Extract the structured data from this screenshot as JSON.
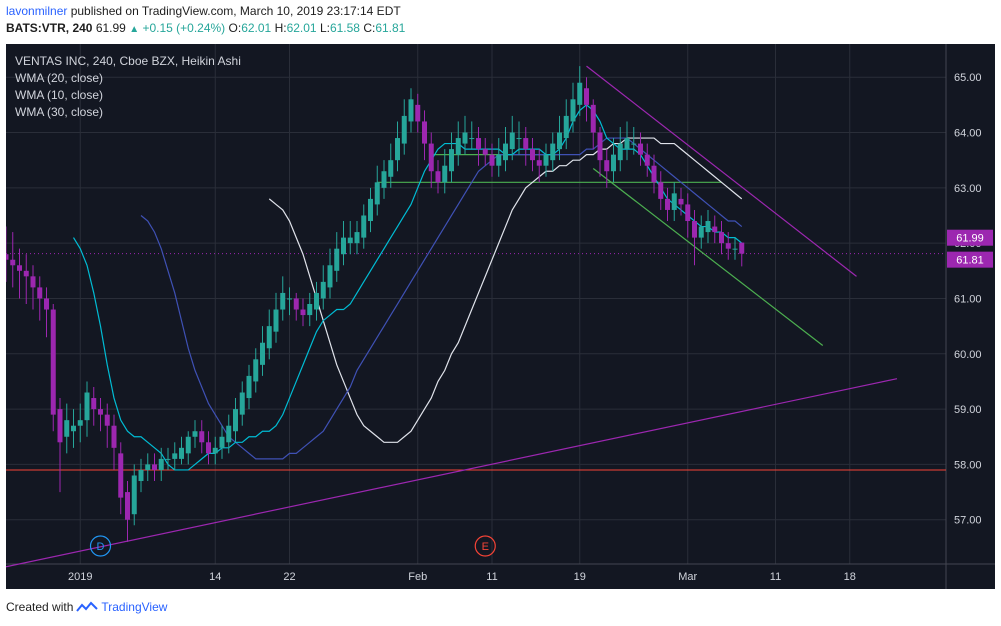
{
  "header": {
    "user": "lavonmilner",
    "published": "published on TradingView.com, March 10, 2019 23:17:14 EDT",
    "symbol": "BATS:VTR, 240",
    "last": "61.99",
    "change": "+0.15 (+0.24%)",
    "o_label": "O:",
    "o": "62.01",
    "h_label": "H:",
    "h": "62.01",
    "l_label": "L:",
    "l": "61.58",
    "c_label": "C:",
    "c": "61.81"
  },
  "legend": {
    "title": "VENTAS INC, 240, Cboe BZX, Heikin Ashi",
    "wma1": "WMA (20, close)",
    "wma2": "WMA (10, close)",
    "wma3": "WMA (30, close)"
  },
  "footer": {
    "created": "Created with",
    "brand": "TradingView"
  },
  "colors": {
    "background": "#131722",
    "grid": "#2a2e39",
    "up": "#26a69a",
    "down": "#9c27b0",
    "wma10": "#00bcd4",
    "wma20": "#3f51b5",
    "wma30": "#e0e3eb",
    "trend_purple": "#9c27b0",
    "trend_green": "#4caf50",
    "support_red": "#f44336"
  },
  "chart_data": {
    "type": "candlestick",
    "title": "VENTAS INC, 240, Cboe BZX, Heikin Ashi",
    "y_ticks": [
      "65.00",
      "64.00",
      "63.00",
      "62.00",
      "61.00",
      "60.00",
      "59.00",
      "58.00",
      "57.00"
    ],
    "ylim": [
      56.2,
      65.6
    ],
    "x_labels": [
      "2019",
      "14",
      "22",
      "Feb",
      "11",
      "19",
      "Mar",
      "11",
      "18"
    ],
    "x_label_index": [
      11,
      31,
      42,
      61,
      72,
      85,
      101,
      114,
      125
    ],
    "price_marks": [
      {
        "value": 61.99,
        "label": "61.99",
        "color": "#9c27b0"
      },
      {
        "value": 61.81,
        "label": "61.81",
        "color": "#9c27b0"
      }
    ],
    "events": [
      {
        "label": "D",
        "index": 14,
        "color": "#2196f3"
      },
      {
        "label": "E",
        "index": 71,
        "color": "#f44336"
      }
    ],
    "candles": [
      [
        61.8,
        61.7,
        62.3,
        61.3
      ],
      [
        61.7,
        61.6,
        62.2,
        61.2
      ],
      [
        61.6,
        61.5,
        61.9,
        61.0
      ],
      [
        61.5,
        61.4,
        61.8,
        60.9
      ],
      [
        61.4,
        61.2,
        61.6,
        60.8
      ],
      [
        61.2,
        61.0,
        61.4,
        60.6
      ],
      [
        61.0,
        60.8,
        61.2,
        60.3
      ],
      [
        60.8,
        58.9,
        60.9,
        58.6
      ],
      [
        59.0,
        58.4,
        59.2,
        57.5
      ],
      [
        58.5,
        58.8,
        59.1,
        58.2
      ],
      [
        58.6,
        58.7,
        59.0,
        58.3
      ],
      [
        58.7,
        58.8,
        59.1,
        58.4
      ],
      [
        58.8,
        59.3,
        59.5,
        58.5
      ],
      [
        59.2,
        59.0,
        59.4,
        58.7
      ],
      [
        59.0,
        58.9,
        59.2,
        58.6
      ],
      [
        58.9,
        58.7,
        59.1,
        58.3
      ],
      [
        58.7,
        58.3,
        58.9,
        57.9
      ],
      [
        58.2,
        57.4,
        58.4,
        57.1
      ],
      [
        57.5,
        57.0,
        57.7,
        56.6
      ],
      [
        57.1,
        57.8,
        58.0,
        56.9
      ],
      [
        57.7,
        57.9,
        58.1,
        57.5
      ],
      [
        57.9,
        58.0,
        58.2,
        57.7
      ],
      [
        58.0,
        57.9,
        58.2,
        57.7
      ],
      [
        57.9,
        58.1,
        58.3,
        57.7
      ],
      [
        58.1,
        58.1,
        58.3,
        57.9
      ],
      [
        58.1,
        58.2,
        58.4,
        57.9
      ],
      [
        58.1,
        58.3,
        58.5,
        58.0
      ],
      [
        58.2,
        58.5,
        58.6,
        58.0
      ],
      [
        58.5,
        58.6,
        58.8,
        58.3
      ],
      [
        58.6,
        58.4,
        58.8,
        58.2
      ],
      [
        58.4,
        58.2,
        58.6,
        58.0
      ],
      [
        58.2,
        58.3,
        58.5,
        58.0
      ],
      [
        58.3,
        58.5,
        58.7,
        58.1
      ],
      [
        58.4,
        58.7,
        58.9,
        58.2
      ],
      [
        58.6,
        59.0,
        59.2,
        58.4
      ],
      [
        58.9,
        59.3,
        59.5,
        58.7
      ],
      [
        59.2,
        59.6,
        59.8,
        59.0
      ],
      [
        59.5,
        59.9,
        60.1,
        59.3
      ],
      [
        59.8,
        60.2,
        60.5,
        59.6
      ],
      [
        60.1,
        60.5,
        60.8,
        59.9
      ],
      [
        60.4,
        60.8,
        61.1,
        60.2
      ],
      [
        60.8,
        61.1,
        61.4,
        60.6
      ],
      [
        61.0,
        61.0,
        61.2,
        60.7
      ],
      [
        61.0,
        60.8,
        61.1,
        60.6
      ],
      [
        60.8,
        60.7,
        61.0,
        60.5
      ],
      [
        60.7,
        60.9,
        61.1,
        60.5
      ],
      [
        60.8,
        61.1,
        61.3,
        60.6
      ],
      [
        61.0,
        61.3,
        61.6,
        60.8
      ],
      [
        61.2,
        61.6,
        61.9,
        61.0
      ],
      [
        61.5,
        61.9,
        62.2,
        61.3
      ],
      [
        61.8,
        62.1,
        62.4,
        61.6
      ],
      [
        62.0,
        62.1,
        62.4,
        61.8
      ],
      [
        62.0,
        62.2,
        62.4,
        61.8
      ],
      [
        62.1,
        62.5,
        62.7,
        61.9
      ],
      [
        62.4,
        62.8,
        63.0,
        62.2
      ],
      [
        62.7,
        63.1,
        63.4,
        62.5
      ],
      [
        63.0,
        63.3,
        63.5,
        62.8
      ],
      [
        63.2,
        63.5,
        63.8,
        63.0
      ],
      [
        63.5,
        63.9,
        64.2,
        63.3
      ],
      [
        63.8,
        64.3,
        64.6,
        63.6
      ],
      [
        64.2,
        64.6,
        64.8,
        64.0
      ],
      [
        64.5,
        64.2,
        64.7,
        64.0
      ],
      [
        64.2,
        63.8,
        64.4,
        63.5
      ],
      [
        63.8,
        63.3,
        64.0,
        63.0
      ],
      [
        63.3,
        63.1,
        63.5,
        62.9
      ],
      [
        63.1,
        63.4,
        63.7,
        62.9
      ],
      [
        63.3,
        63.7,
        64.0,
        63.1
      ],
      [
        63.6,
        63.9,
        64.2,
        63.4
      ],
      [
        63.8,
        64.0,
        64.3,
        63.6
      ],
      [
        63.9,
        63.9,
        64.2,
        63.7
      ],
      [
        63.9,
        63.7,
        64.1,
        63.4
      ],
      [
        63.7,
        63.6,
        63.9,
        63.4
      ],
      [
        63.6,
        63.4,
        63.8,
        63.2
      ],
      [
        63.4,
        63.6,
        63.9,
        63.2
      ],
      [
        63.5,
        63.8,
        64.1,
        63.3
      ],
      [
        63.7,
        64.0,
        64.3,
        63.5
      ],
      [
        63.9,
        63.9,
        64.2,
        63.6
      ],
      [
        63.9,
        63.7,
        64.1,
        63.4
      ],
      [
        63.7,
        63.5,
        63.9,
        63.3
      ],
      [
        63.5,
        63.4,
        63.7,
        63.1
      ],
      [
        63.4,
        63.6,
        63.8,
        63.2
      ],
      [
        63.5,
        63.8,
        64.0,
        63.3
      ],
      [
        63.7,
        64.0,
        64.3,
        63.5
      ],
      [
        63.9,
        64.3,
        64.6,
        63.7
      ],
      [
        64.2,
        64.6,
        64.9,
        64.0
      ],
      [
        64.5,
        64.9,
        65.2,
        64.3
      ],
      [
        64.8,
        64.5,
        65.0,
        64.2
      ],
      [
        64.5,
        64.0,
        64.6,
        63.7
      ],
      [
        64.0,
        63.5,
        64.1,
        63.2
      ],
      [
        63.5,
        63.3,
        63.7,
        63.0
      ],
      [
        63.3,
        63.6,
        63.9,
        63.1
      ],
      [
        63.5,
        63.8,
        64.1,
        63.3
      ],
      [
        63.7,
        63.9,
        64.2,
        63.5
      ],
      [
        63.8,
        63.8,
        64.1,
        63.6
      ],
      [
        63.8,
        63.6,
        64.0,
        63.4
      ],
      [
        63.6,
        63.4,
        63.8,
        63.2
      ],
      [
        63.4,
        63.1,
        63.6,
        62.9
      ],
      [
        63.1,
        62.8,
        63.3,
        62.6
      ],
      [
        62.8,
        62.6,
        63.0,
        62.4
      ],
      [
        62.6,
        62.9,
        63.1,
        62.4
      ],
      [
        62.8,
        62.7,
        63.0,
        62.5
      ],
      [
        62.7,
        62.4,
        62.9,
        62.1
      ],
      [
        62.4,
        62.1,
        62.6,
        61.6
      ],
      [
        62.1,
        62.3,
        62.5,
        61.9
      ],
      [
        62.2,
        62.4,
        62.6,
        62.0
      ],
      [
        62.3,
        62.2,
        62.5,
        62.0
      ],
      [
        62.2,
        62.0,
        62.4,
        61.8
      ],
      [
        62.0,
        61.9,
        62.2,
        61.7
      ],
      [
        61.9,
        61.9,
        62.1,
        61.7
      ],
      [
        62.01,
        61.81,
        62.01,
        61.58
      ]
    ],
    "wma10": [
      62.1,
      61.9,
      61.6,
      61.1,
      60.5,
      59.8,
      59.2,
      58.8,
      58.6,
      58.5,
      58.5,
      58.4,
      58.3,
      58.2,
      58.0,
      57.9,
      57.9,
      57.9,
      58.0,
      58.1,
      58.2,
      58.2,
      58.3,
      58.3,
      58.4,
      58.4,
      58.5,
      58.5,
      58.6,
      58.6,
      58.7,
      58.9,
      59.2,
      59.5,
      59.8,
      60.1,
      60.4,
      60.6,
      60.7,
      60.8,
      60.8,
      60.9,
      61.1,
      61.3,
      61.5,
      61.7,
      61.9,
      62.1,
      62.3,
      62.5,
      62.7,
      63.0,
      63.3,
      63.5,
      63.7,
      63.8,
      63.8,
      63.8,
      63.7,
      63.7,
      63.7,
      63.7,
      63.7,
      63.7,
      63.6,
      63.6,
      63.7,
      63.7,
      63.7,
      63.7,
      63.6,
      63.6,
      63.7,
      63.9,
      64.2,
      64.4,
      64.5,
      64.4,
      64.2,
      63.9,
      63.8,
      63.7,
      63.7,
      63.7,
      63.6,
      63.4,
      63.2,
      63.0,
      62.8,
      62.7,
      62.6,
      62.5,
      62.4,
      62.3,
      62.3,
      62.2,
      62.2,
      62.1,
      62.1,
      62.0
    ],
    "wma20": [
      62.5,
      62.4,
      62.2,
      61.9,
      61.5,
      61.1,
      60.6,
      60.1,
      59.7,
      59.4,
      59.1,
      58.9,
      58.7,
      58.5,
      58.4,
      58.3,
      58.2,
      58.1,
      58.1,
      58.1,
      58.1,
      58.1,
      58.2,
      58.2,
      58.3,
      58.4,
      58.5,
      58.6,
      58.8,
      59.0,
      59.2,
      59.4,
      59.7,
      59.9,
      60.1,
      60.3,
      60.5,
      60.7,
      60.9,
      61.1,
      61.3,
      61.5,
      61.7,
      61.9,
      62.1,
      62.3,
      62.5,
      62.7,
      62.9,
      63.1,
      63.3,
      63.4,
      63.5,
      63.6,
      63.6,
      63.6,
      63.6,
      63.6,
      63.6,
      63.6,
      63.6,
      63.6,
      63.6,
      63.6,
      63.6,
      63.6,
      63.7,
      63.7,
      63.8,
      63.9,
      63.9,
      63.9,
      63.9,
      63.8,
      63.7,
      63.6,
      63.5,
      63.4,
      63.3,
      63.2,
      63.1,
      63.0,
      62.9,
      62.8,
      62.7,
      62.6,
      62.5,
      62.4,
      62.4,
      62.3
    ],
    "wma30": [
      62.8,
      62.7,
      62.6,
      62.4,
      62.1,
      61.8,
      61.4,
      61.0,
      60.6,
      60.2,
      59.8,
      59.5,
      59.2,
      58.9,
      58.7,
      58.6,
      58.5,
      58.4,
      58.4,
      58.4,
      58.5,
      58.6,
      58.8,
      59.0,
      59.2,
      59.5,
      59.7,
      60.0,
      60.2,
      60.5,
      60.8,
      61.1,
      61.4,
      61.7,
      62.0,
      62.3,
      62.6,
      62.8,
      63.0,
      63.1,
      63.2,
      63.3,
      63.3,
      63.4,
      63.4,
      63.5,
      63.5,
      63.6,
      63.6,
      63.7,
      63.7,
      63.8,
      63.8,
      63.9,
      63.9,
      63.9,
      63.9,
      63.9,
      63.8,
      63.8,
      63.8,
      63.7,
      63.6,
      63.5,
      63.4,
      63.3,
      63.2,
      63.1,
      63.0,
      62.9,
      62.8
    ],
    "trendlines": [
      {
        "name": "purple-support",
        "color": "#9c27b0",
        "x": [
          0,
          132
        ],
        "y": [
          56.15,
          59.55
        ]
      },
      {
        "name": "purple-resistance",
        "color": "#9c27b0",
        "x": [
          86,
          126
        ],
        "y": [
          65.2,
          61.4
        ]
      },
      {
        "name": "green-channel",
        "color": "#4caf50",
        "x": [
          87,
          121
        ],
        "y": [
          63.35,
          60.15
        ]
      },
      {
        "name": "green-horizontal",
        "color": "#4caf50",
        "x": [
          55,
          106
        ],
        "y": [
          63.1,
          63.1
        ]
      },
      {
        "name": "green-short",
        "color": "#4caf50",
        "x": [
          63,
          82
        ],
        "y": [
          63.6,
          63.6
        ]
      }
    ],
    "hlines": [
      {
        "name": "support-red",
        "color": "#f44336",
        "y": 57.9
      },
      {
        "name": "last-price",
        "color": "#9c27b0",
        "y": 61.81,
        "dotted": true
      }
    ]
  }
}
